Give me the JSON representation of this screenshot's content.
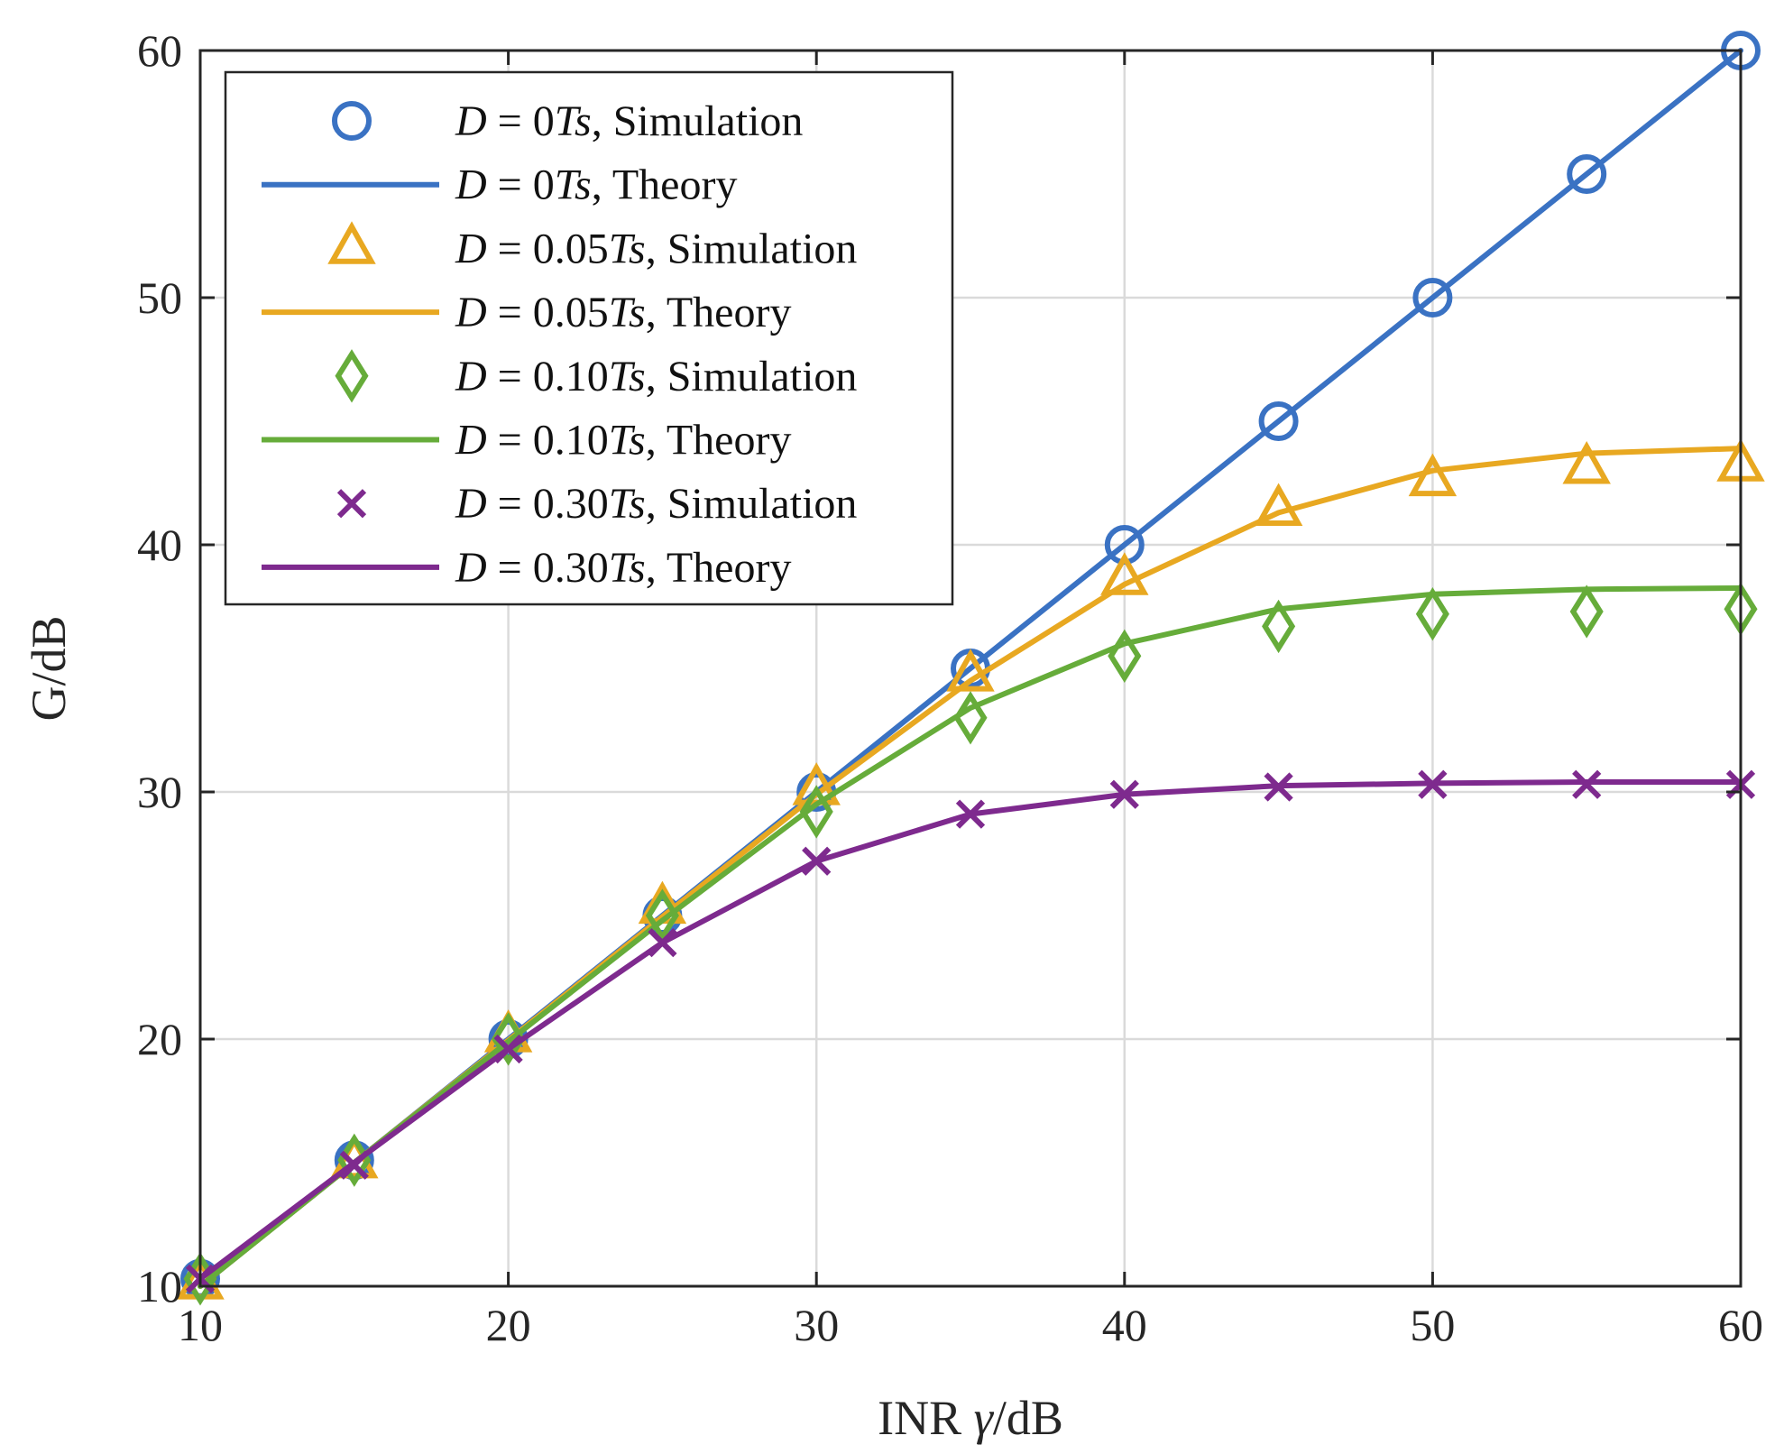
{
  "chart_data": {
    "type": "line",
    "title": "",
    "xlabel": {
      "prefix": "INR ",
      "symbol": "γ",
      "suffix": "/dB"
    },
    "ylabel": "G/dB",
    "xlim": [
      10,
      60
    ],
    "ylim": [
      10,
      60
    ],
    "xticks": [
      10,
      20,
      30,
      40,
      50,
      60
    ],
    "yticks": [
      10,
      20,
      30,
      40,
      50,
      60
    ],
    "grid": true,
    "legend_position": "top-left",
    "x": [
      10,
      15,
      20,
      25,
      30,
      35,
      40,
      45,
      50,
      55,
      60
    ],
    "series": [
      {
        "delay": "0",
        "color": "#3a72c3",
        "theory": [
          10,
          15,
          20,
          25,
          30,
          35,
          40,
          45,
          50,
          55,
          60
        ],
        "simulation": {
          "marker": "circle",
          "values": [
            10.3,
            15.1,
            20.0,
            25.0,
            30.0,
            35.0,
            40.0,
            45.0,
            50.0,
            55.0,
            60.0
          ]
        },
        "sim_label": {
          "prefix": "D",
          "eq": " = ",
          "value": "0",
          "unit": "Ts",
          "suffix": ", Simulation"
        },
        "theory_label": {
          "prefix": "D",
          "eq": " = ",
          "value": "0",
          "unit": "Ts",
          "suffix": ", Theory"
        }
      },
      {
        "delay": "0.05",
        "color": "#e8a821",
        "theory": [
          10,
          15,
          19.95,
          24.95,
          29.9,
          34.5,
          38.4,
          41.3,
          43.0,
          43.7,
          43.9
        ],
        "simulation": {
          "marker": "triangle",
          "values": [
            10.1,
            15.0,
            20.1,
            25.3,
            30.1,
            34.7,
            38.6,
            41.4,
            42.6,
            43.1,
            43.2
          ]
        },
        "sim_label": {
          "prefix": "D",
          "eq": " = ",
          "value": "0.05",
          "unit": "Ts",
          "suffix": ", Simulation"
        },
        "theory_label": {
          "prefix": "D",
          "eq": " = ",
          "value": "0.05",
          "unit": "Ts",
          "suffix": ", Theory"
        }
      },
      {
        "delay": "0.10",
        "color": "#66ac3a",
        "theory": [
          10,
          15,
          19.9,
          24.8,
          29.5,
          33.4,
          36.0,
          37.4,
          38.0,
          38.2,
          38.25
        ],
        "simulation": {
          "marker": "diamond",
          "values": [
            10.3,
            15.1,
            20.0,
            25.0,
            29.2,
            33.0,
            35.5,
            36.7,
            37.2,
            37.3,
            37.4
          ]
        },
        "sim_label": {
          "prefix": "D",
          "eq": " = ",
          "value": "0.10",
          "unit": "Ts",
          "suffix": ", Simulation"
        },
        "theory_label": {
          "prefix": "D",
          "eq": " = ",
          "value": "0.10",
          "unit": "Ts",
          "suffix": ", Theory"
        }
      },
      {
        "delay": "0.30",
        "color": "#7e2a8e",
        "theory": [
          10.3,
          15.0,
          19.6,
          23.9,
          27.2,
          29.1,
          29.9,
          30.25,
          30.35,
          30.4,
          30.4
        ],
        "simulation": {
          "marker": "x",
          "values": [
            10.3,
            14.9,
            19.6,
            23.9,
            27.2,
            29.1,
            29.9,
            30.2,
            30.3,
            30.3,
            30.3
          ]
        },
        "sim_label": {
          "prefix": "D",
          "eq": " = ",
          "value": "0.30",
          "unit": "Ts",
          "suffix": ", Simulation"
        },
        "theory_label": {
          "prefix": "D",
          "eq": " = ",
          "value": "0.30",
          "unit": "Ts",
          "suffix": ", Theory"
        }
      }
    ]
  }
}
